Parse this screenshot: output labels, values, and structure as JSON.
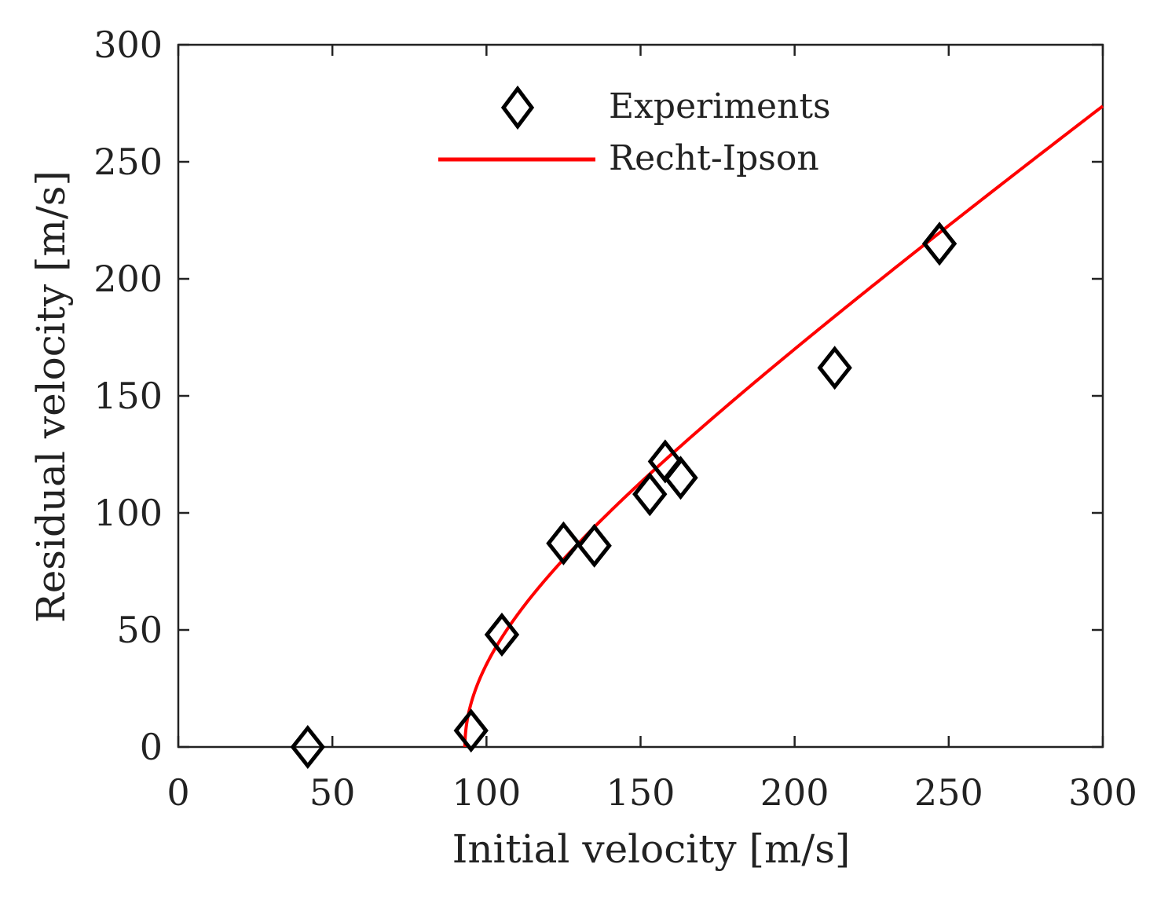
{
  "chart_data": {
    "type": "scatter",
    "xlabel": "Initial velocity [m/s]",
    "ylabel": "Residual velocity [m/s]",
    "xlim": [
      0,
      300
    ],
    "ylim": [
      0,
      300
    ],
    "xticks": [
      "0",
      "50",
      "100",
      "150",
      "200",
      "250",
      "300"
    ],
    "yticks": [
      "0",
      "50",
      "100",
      "150",
      "200",
      "250",
      "300"
    ],
    "grid": false,
    "legend_position": "top-center",
    "series": [
      {
        "name": "Experiments",
        "kind": "markers",
        "marker": "diamond",
        "color": "#000000",
        "points": [
          {
            "x": 42,
            "y": 0
          },
          {
            "x": 95,
            "y": 7
          },
          {
            "x": 105,
            "y": 48
          },
          {
            "x": 125,
            "y": 87
          },
          {
            "x": 135,
            "y": 86
          },
          {
            "x": 153,
            "y": 108
          },
          {
            "x": 158,
            "y": 122
          },
          {
            "x": 163,
            "y": 115
          },
          {
            "x": 213,
            "y": 162
          },
          {
            "x": 247,
            "y": 215
          }
        ]
      },
      {
        "name": "Recht-Ipson",
        "kind": "line",
        "color": "#ff0000",
        "ballistic_limit": 93,
        "coefficient": 0.96,
        "p": 2,
        "x_end": 300
      }
    ]
  }
}
